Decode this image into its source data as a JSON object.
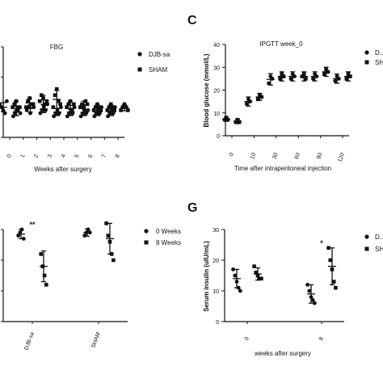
{
  "panels": {
    "C": {
      "letter": "C"
    },
    "G": {
      "letter": "G"
    }
  },
  "chart_data": [
    {
      "id": "fbg",
      "type": "scatter",
      "title": "FBG",
      "xlabel": "Weeks after surgery",
      "ylabel": "",
      "categories": [
        "0",
        "1",
        "2",
        "3",
        "4",
        "5",
        "6",
        "7",
        "8"
      ],
      "ylim": [
        0,
        30
      ],
      "legend_position": "right",
      "series": [
        {
          "name": "DJB-sa",
          "marker": "circle",
          "points": [
            [
              11,
              10,
              9,
              8,
              12
            ],
            [
              7,
              8,
              9,
              10,
              8
            ],
            [
              9,
              10,
              8,
              11,
              10
            ],
            [
              8,
              9,
              10,
              9,
              11
            ],
            [
              7,
              8,
              9,
              8,
              10
            ],
            [
              7,
              8,
              9,
              8,
              10
            ],
            [
              7,
              8,
              9,
              8,
              9
            ],
            [
              7,
              8,
              9,
              8,
              10
            ],
            [
              7,
              8,
              9,
              8,
              10
            ]
          ],
          "mean": [
            10,
            8.4,
            9.6,
            9.4,
            8.4,
            8.4,
            8.2,
            8.4,
            8.4
          ],
          "err": [
            1.5,
            1.2,
            1.2,
            1.2,
            1.2,
            1.2,
            1.0,
            1.2,
            1.2
          ]
        },
        {
          "name": "SHAM",
          "marker": "square",
          "points": [
            [
              10,
              11,
              12,
              9,
              10
            ],
            [
              10,
              12,
              13,
              11,
              11
            ],
            [
              12,
              14,
              13,
              11,
              12
            ],
            [
              10,
              14,
              16,
              12,
              11
            ],
            [
              10,
              11,
              12,
              9,
              11
            ],
            [
              10,
              11,
              10,
              12,
              11
            ],
            [
              9,
              10,
              11,
              10,
              9
            ],
            [
              9,
              10,
              11,
              10,
              9
            ],
            [
              9,
              10,
              11,
              10,
              9
            ]
          ],
          "mean": [
            10.4,
            11.4,
            12.4,
            12.6,
            10.6,
            10.8,
            9.8,
            9.8,
            9.8
          ],
          "err": [
            1.5,
            1.5,
            1.5,
            3.0,
            1.2,
            1.2,
            1.0,
            1.0,
            1.0
          ]
        }
      ]
    },
    {
      "id": "ipgtt",
      "type": "scatter",
      "title": "IPGTT week_0",
      "xlabel": "Time after intraperitoneal injection",
      "ylabel": "Blood glucose (mmol/L)",
      "categories": [
        "0",
        "10",
        "30",
        "60",
        "90",
        "120"
      ],
      "ylim": [
        0,
        40
      ],
      "yticks": [
        0,
        10,
        20,
        30,
        40
      ],
      "legend_position": "right",
      "series": [
        {
          "name": "DJB-sa",
          "legend_label": "D...",
          "marker": "circle",
          "points": [
            [
              7,
              8,
              7
            ],
            [
              14,
              16,
              15
            ],
            [
              23,
              26,
              25
            ],
            [
              25,
              27,
              26
            ],
            [
              25,
              27,
              26
            ],
            [
              24,
              26,
              25
            ]
          ],
          "mean": [
            7.3,
            15,
            24.7,
            26,
            26,
            25
          ],
          "err": [
            1,
            2,
            2.5,
            2,
            2,
            2
          ]
        },
        {
          "name": "SHAM",
          "legend_label": "SH",
          "marker": "square",
          "points": [
            [
              6,
              7,
              6
            ],
            [
              16,
              18,
              17
            ],
            [
              25,
              27,
              26
            ],
            [
              26,
              27,
              25
            ],
            [
              27,
              29,
              28
            ],
            [
              25,
              27,
              26
            ]
          ],
          "mean": [
            6.3,
            17,
            26,
            26,
            28,
            26
          ],
          "err": [
            1,
            1.5,
            2,
            2,
            2,
            2
          ]
        }
      ]
    },
    {
      "id": "bar-left",
      "type": "scatter",
      "title": "",
      "xlabel": "",
      "ylabel": "",
      "categories": [
        "DJB-sa",
        "SHAM"
      ],
      "ylim": [
        0,
        30
      ],
      "legend_position": "right",
      "annotations": [
        {
          "text": "**",
          "category": "DJB-sa"
        }
      ],
      "series": [
        {
          "name": "0 Weeks",
          "marker": "circle",
          "points": [
            [
              28,
              29,
              30,
              27
            ],
            [
              28,
              29,
              30,
              29
            ]
          ],
          "mean": [
            28.5,
            29
          ],
          "err": [
            1.5,
            1.2
          ]
        },
        {
          "name": "8 Weeks",
          "marker": "square",
          "points": [
            [
              22,
              18,
              15,
              12
            ],
            [
              32,
              28,
              26,
              22,
              20
            ]
          ],
          "mean": [
            18,
            27
          ],
          "err": [
            5,
            5
          ]
        }
      ]
    },
    {
      "id": "insulin",
      "type": "scatter",
      "title": "",
      "xlabel": "weeks after surgery",
      "ylabel": "Serum insulin (uIU/mL)",
      "categories": [
        "0",
        "8"
      ],
      "ylim": [
        0,
        30
      ],
      "yticks": [
        0,
        10,
        20,
        30
      ],
      "legend_position": "right",
      "annotations": [
        {
          "text": "*",
          "category": "8"
        }
      ],
      "series": [
        {
          "name": "DJB-sa",
          "legend_label": "D...",
          "marker": "circle",
          "points": [
            [
              17,
              15,
              13,
              11,
              10
            ],
            [
              12,
              10,
              8,
              7,
              6
            ]
          ],
          "mean": [
            14,
            9
          ],
          "err": [
            3,
            3
          ]
        },
        {
          "name": "SHAM",
          "legend_label": "SH",
          "marker": "square",
          "points": [
            [
              18,
              16,
              15,
              14,
              14
            ],
            [
              24,
              20,
              17,
              13,
              11
            ]
          ],
          "mean": [
            15.5,
            18
          ],
          "err": [
            2,
            6
          ]
        }
      ]
    }
  ]
}
